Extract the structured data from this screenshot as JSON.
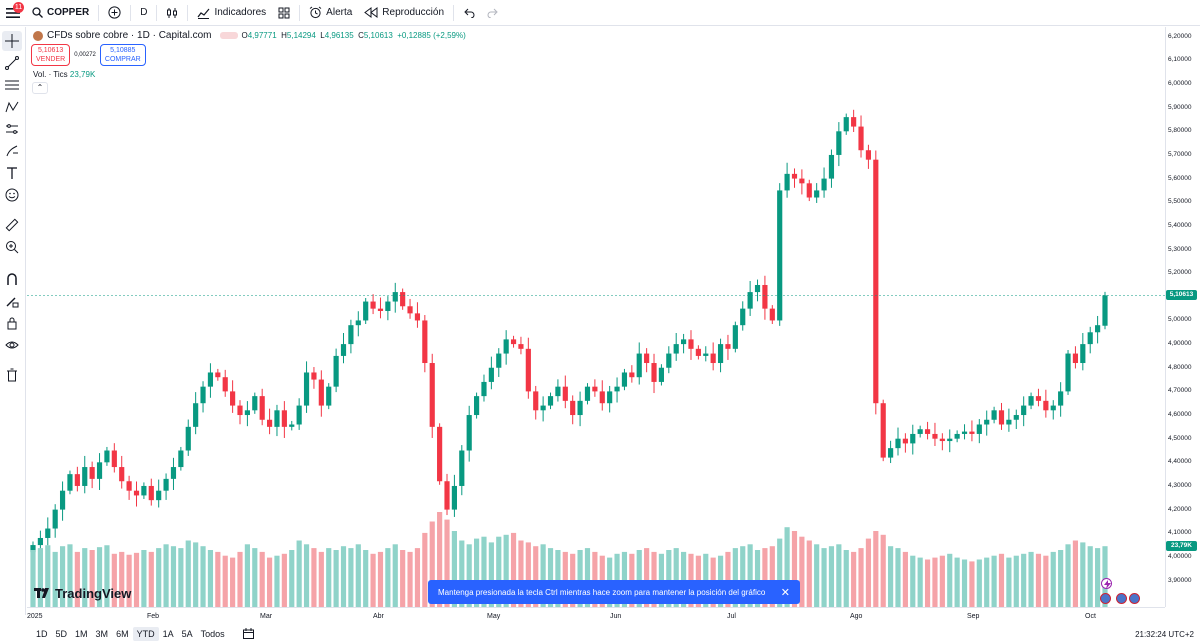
{
  "toolbar": {
    "menu_badge": "11",
    "symbol": "COPPER",
    "interval": "D",
    "indicators_label": "Indicadores",
    "alert_label": "Alerta",
    "replay_label": "Reproducción"
  },
  "legend": {
    "title": "CFDs sobre cobre · 1D · Capital.com",
    "o_label": "O",
    "o_value": "4,97771",
    "h_label": "H",
    "h_value": "5,14294",
    "l_label": "L",
    "l_value": "4,96135",
    "c_label": "C",
    "c_value": "5,10613",
    "change": "+0,12885 (+2,59%)"
  },
  "trade": {
    "sell_price": "5,10613",
    "sell_label": "VENDER",
    "spread": "0,00272",
    "buy_price": "5,10885",
    "buy_label": "COMPRAR"
  },
  "volume_legend": {
    "label": "Vol. · Tics",
    "value": "23,79K"
  },
  "brand": "TradingView",
  "toast": {
    "text": "Mantenga presionada la tecla Ctrl mientras hace zoom para mantener la posición del gráfico"
  },
  "colors": {
    "up": "#089981",
    "down": "#f23645",
    "vol_up": "#8fd3c9",
    "vol_down": "#f5a3a8",
    "accent": "#2962ff"
  },
  "bottom": {
    "ranges": [
      "1D",
      "5D",
      "1M",
      "3M",
      "6M",
      "YTD",
      "1A",
      "5A",
      "Todos"
    ],
    "active_range": "YTD",
    "clock": "21:32:24 UTC+2"
  },
  "chart_data": {
    "type": "candlestick",
    "title": "CFDs sobre cobre · 1D · Capital.com",
    "y_axis_ticks": [
      "6,20000",
      "6,10000",
      "6,00000",
      "5,90000",
      "5,80000",
      "5,70000",
      "5,60000",
      "5,50000",
      "5,40000",
      "5,30000",
      "5,20000",
      "5,10000",
      "5,00000",
      "4,90000",
      "4,80000",
      "4,70000",
      "4,60000",
      "4,50000",
      "4,40000",
      "4,30000",
      "4,20000",
      "4,10000",
      "4,00000",
      "3,90000"
    ],
    "ylim": [
      3.86,
      6.22
    ],
    "x_tick_labels": [
      "2025",
      "Feb",
      "Mar",
      "Abr",
      "May",
      "Jun",
      "Jul",
      "Ago",
      "Sep",
      "Oct"
    ],
    "current_price_label": "5,10613",
    "current_price": 5.10613,
    "volume_label": "23,79K",
    "closes": [
      4.05,
      4.08,
      4.12,
      4.2,
      4.28,
      4.35,
      4.3,
      4.38,
      4.33,
      4.4,
      4.45,
      4.38,
      4.32,
      4.28,
      4.26,
      4.3,
      4.24,
      4.28,
      4.33,
      4.38,
      4.45,
      4.55,
      4.65,
      4.72,
      4.78,
      4.76,
      4.7,
      4.64,
      4.6,
      4.62,
      4.68,
      4.58,
      4.55,
      4.62,
      4.55,
      4.56,
      4.64,
      4.78,
      4.75,
      4.64,
      4.72,
      4.85,
      4.9,
      4.98,
      5.0,
      5.08,
      5.05,
      5.04,
      5.08,
      5.12,
      5.06,
      5.03,
      5.0,
      4.82,
      4.55,
      4.32,
      4.2,
      4.3,
      4.45,
      4.6,
      4.68,
      4.74,
      4.8,
      4.86,
      4.92,
      4.9,
      4.88,
      4.7,
      4.62,
      4.64,
      4.68,
      4.72,
      4.66,
      4.6,
      4.66,
      4.72,
      4.7,
      4.65,
      4.7,
      4.72,
      4.78,
      4.76,
      4.86,
      4.82,
      4.74,
      4.8,
      4.86,
      4.9,
      4.92,
      4.88,
      4.85,
      4.86,
      4.82,
      4.9,
      4.88,
      4.98,
      5.05,
      5.12,
      5.15,
      5.05,
      5.0,
      5.55,
      5.62,
      5.6,
      5.58,
      5.52,
      5.55,
      5.6,
      5.7,
      5.8,
      5.86,
      5.82,
      5.72,
      5.68,
      4.65,
      4.42,
      4.46,
      4.5,
      4.48,
      4.52,
      4.54,
      4.52,
      4.5,
      4.49,
      4.5,
      4.52,
      4.53,
      4.52,
      4.56,
      4.58,
      4.62,
      4.56,
      4.58,
      4.6,
      4.64,
      4.68,
      4.66,
      4.62,
      4.64,
      4.7,
      4.86,
      4.82,
      4.9,
      4.95,
      4.98,
      5.10613
    ],
    "volumes": [
      60,
      62,
      65,
      58,
      64,
      66,
      58,
      62,
      60,
      63,
      65,
      56,
      58,
      55,
      57,
      60,
      58,
      62,
      66,
      64,
      62,
      70,
      68,
      64,
      60,
      58,
      54,
      52,
      58,
      66,
      62,
      58,
      52,
      54,
      56,
      60,
      70,
      66,
      62,
      58,
      62,
      60,
      64,
      62,
      66,
      60,
      56,
      58,
      62,
      66,
      60,
      58,
      62,
      78,
      90,
      100,
      92,
      80,
      70,
      66,
      72,
      74,
      68,
      74,
      76,
      78,
      70,
      68,
      64,
      66,
      62,
      60,
      58,
      56,
      60,
      62,
      58,
      54,
      52,
      56,
      58,
      56,
      60,
      62,
      58,
      56,
      60,
      62,
      58,
      56,
      54,
      56,
      52,
      54,
      58,
      62,
      64,
      66,
      60,
      62,
      64,
      72,
      84,
      80,
      74,
      70,
      66,
      62,
      64,
      66,
      60,
      58,
      62,
      72,
      80,
      76,
      64,
      62,
      58,
      54,
      52,
      50,
      52,
      54,
      56,
      52,
      50,
      48,
      50,
      52,
      54,
      56,
      52,
      54,
      56,
      58,
      56,
      54,
      58,
      60,
      66,
      70,
      68,
      64,
      62,
      64
    ],
    "volume_max": 100,
    "last_volume": "23,79K"
  }
}
